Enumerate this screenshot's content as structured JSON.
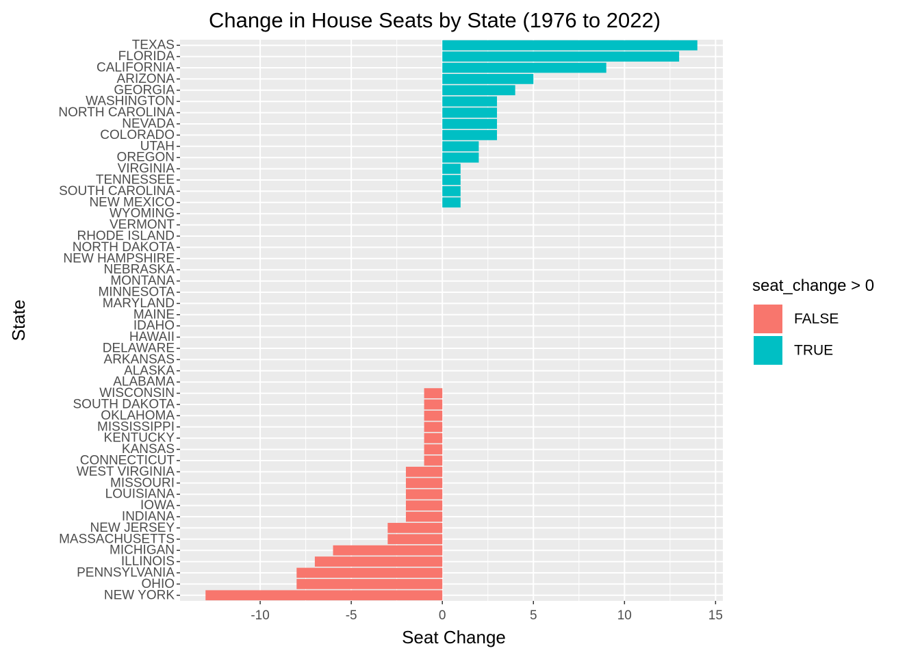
{
  "chart_data": {
    "type": "bar",
    "orientation": "horizontal",
    "title": "Change in House Seats by State (1976 to 2022)",
    "xlabel": "Seat Change",
    "ylabel": "State",
    "xlim": [
      -14.4,
      15.4
    ],
    "xticks": [
      -10,
      -5,
      0,
      5,
      10,
      15
    ],
    "grid": true,
    "legend_position": "right",
    "legend": {
      "title": "seat_change > 0",
      "entries": [
        {
          "label": "FALSE",
          "color": "#F8766D"
        },
        {
          "label": "TRUE",
          "color": "#00BFC4"
        }
      ]
    },
    "colors": {
      "positive": "#00BFC4",
      "negative": "#F8766D",
      "panel": "#EBEBEB",
      "grid": "#FFFFFF"
    },
    "categories": [
      "TEXAS",
      "FLORIDA",
      "CALIFORNIA",
      "ARIZONA",
      "GEORGIA",
      "WASHINGTON",
      "NORTH CAROLINA",
      "NEVADA",
      "COLORADO",
      "UTAH",
      "OREGON",
      "VIRGINIA",
      "TENNESSEE",
      "SOUTH CAROLINA",
      "NEW MEXICO",
      "WYOMING",
      "VERMONT",
      "RHODE ISLAND",
      "NORTH DAKOTA",
      "NEW HAMPSHIRE",
      "NEBRASKA",
      "MONTANA",
      "MINNESOTA",
      "MARYLAND",
      "MAINE",
      "IDAHO",
      "HAWAII",
      "DELAWARE",
      "ARKANSAS",
      "ALASKA",
      "ALABAMA",
      "WISCONSIN",
      "SOUTH DAKOTA",
      "OKLAHOMA",
      "MISSISSIPPI",
      "KENTUCKY",
      "KANSAS",
      "CONNECTICUT",
      "WEST VIRGINIA",
      "MISSOURI",
      "LOUISIANA",
      "IOWA",
      "INDIANA",
      "NEW JERSEY",
      "MASSACHUSETTS",
      "MICHIGAN",
      "ILLINOIS",
      "PENNSYLVANIA",
      "OHIO",
      "NEW YORK"
    ],
    "values": [
      14,
      13,
      9,
      5,
      4,
      3,
      3,
      3,
      3,
      2,
      2,
      1,
      1,
      1,
      1,
      0,
      0,
      0,
      0,
      0,
      0,
      0,
      0,
      0,
      0,
      0,
      0,
      0,
      0,
      0,
      0,
      -1,
      -1,
      -1,
      -1,
      -1,
      -1,
      -1,
      -2,
      -2,
      -2,
      -2,
      -2,
      -3,
      -3,
      -6,
      -7,
      -8,
      -8,
      -13
    ]
  }
}
